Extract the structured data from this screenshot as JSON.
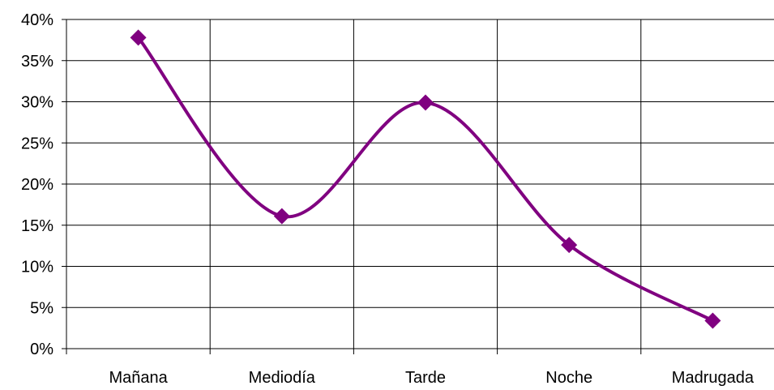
{
  "chart_data": {
    "type": "line",
    "title": "",
    "xlabel": "",
    "ylabel": "",
    "categories": [
      "Mañana",
      "Mediodía",
      "Tarde",
      "Noche",
      "Madrugada"
    ],
    "series": [
      {
        "values": [
          37.8,
          16.1,
          29.9,
          12.6,
          3.4
        ]
      }
    ],
    "ylim": [
      0,
      40
    ],
    "y_ticks": [
      0,
      5,
      10,
      15,
      20,
      25,
      30,
      35,
      40
    ],
    "y_tick_labels": [
      "0%",
      "5%",
      "10%",
      "15%",
      "20%",
      "25%",
      "30%",
      "35%",
      "40%"
    ],
    "grid": {
      "horizontal": true,
      "vertical": true
    },
    "smooth": true,
    "marker": "diamond",
    "legend": "none",
    "colors": {
      "series": "#800080",
      "grid": "#000000"
    }
  }
}
